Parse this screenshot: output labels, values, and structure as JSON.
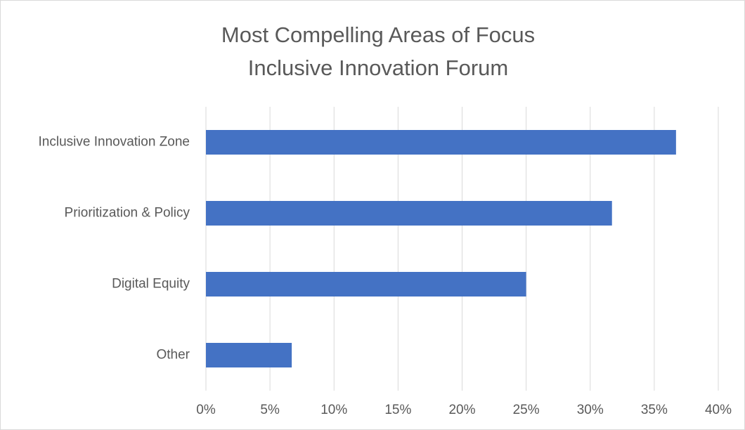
{
  "chart_data": {
    "type": "bar",
    "orientation": "horizontal",
    "title": "Most Compelling Areas of Focus",
    "subtitle": "Inclusive Innovation Forum",
    "categories": [
      "Inclusive Innovation Zone",
      "Prioritization & Policy",
      "Digital Equity",
      "Other"
    ],
    "values": [
      36.7,
      31.7,
      25,
      6.7
    ],
    "color": "#4472c4",
    "xlim": [
      0,
      40
    ],
    "xticks": [
      {
        "value": 0,
        "label": "0%"
      },
      {
        "value": 5,
        "label": "5%"
      },
      {
        "value": 10,
        "label": "10%"
      },
      {
        "value": 15,
        "label": "15%"
      },
      {
        "value": 20,
        "label": "20%"
      },
      {
        "value": 25,
        "label": "25%"
      },
      {
        "value": 30,
        "label": "30%"
      },
      {
        "value": 35,
        "label": "35%"
      },
      {
        "value": 40,
        "label": "40%"
      }
    ],
    "grid": true
  }
}
